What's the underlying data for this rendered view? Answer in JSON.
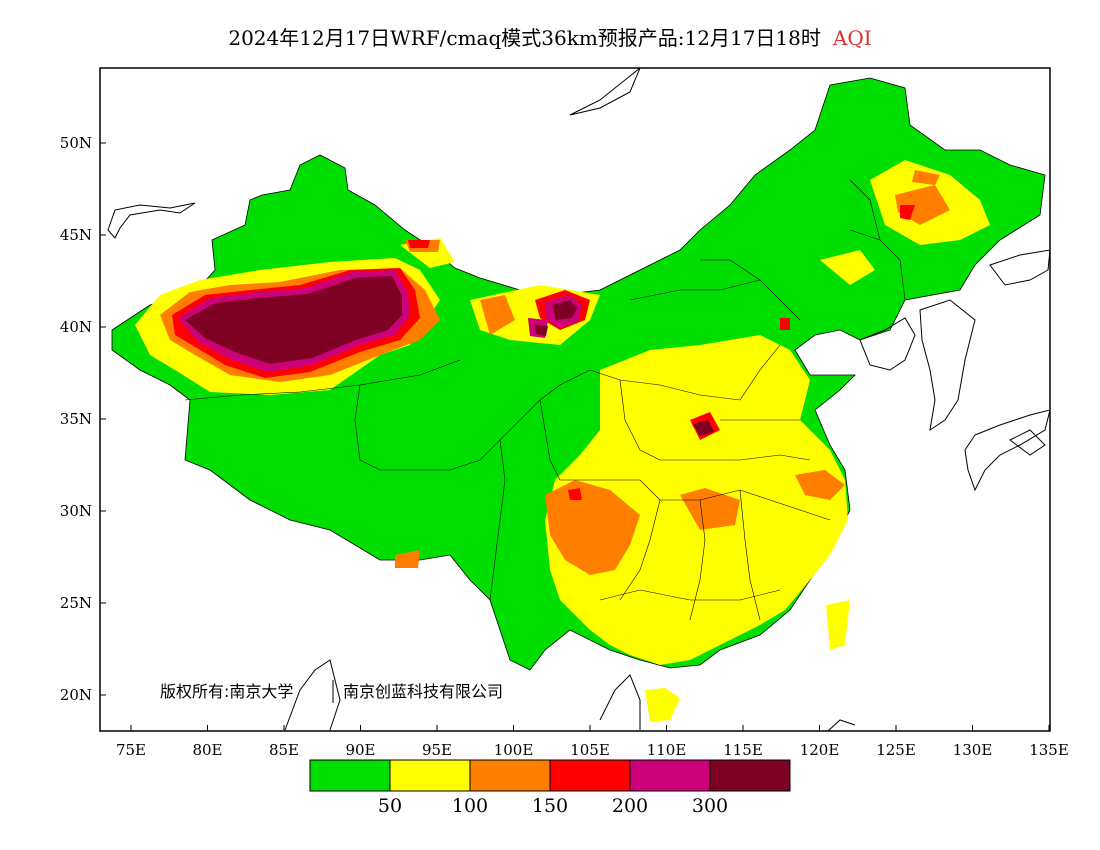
{
  "title": {
    "main": "2024年12月17日WRF/cmaq模式36km预报产品:12月17日18时",
    "variable": "AQI"
  },
  "map": {
    "lon_ticks": [
      "75E",
      "80E",
      "85E",
      "90E",
      "95E",
      "100E",
      "105E",
      "110E",
      "115E",
      "120E",
      "125E",
      "130E",
      "135E"
    ],
    "lat_ticks": [
      "50N",
      "45N",
      "40N",
      "35N",
      "30N",
      "25N",
      "20N"
    ],
    "copyright_owner": "版权所有:南京大学",
    "copyright_company": "南京创蓝科技有限公司"
  },
  "legend": {
    "colors": [
      "#00dd00",
      "#ffff00",
      "#ff7e00",
      "#ff0000",
      "#cc0077",
      "#7e0023"
    ],
    "labels": [
      "50",
      "100",
      "150",
      "200",
      "300"
    ]
  }
}
